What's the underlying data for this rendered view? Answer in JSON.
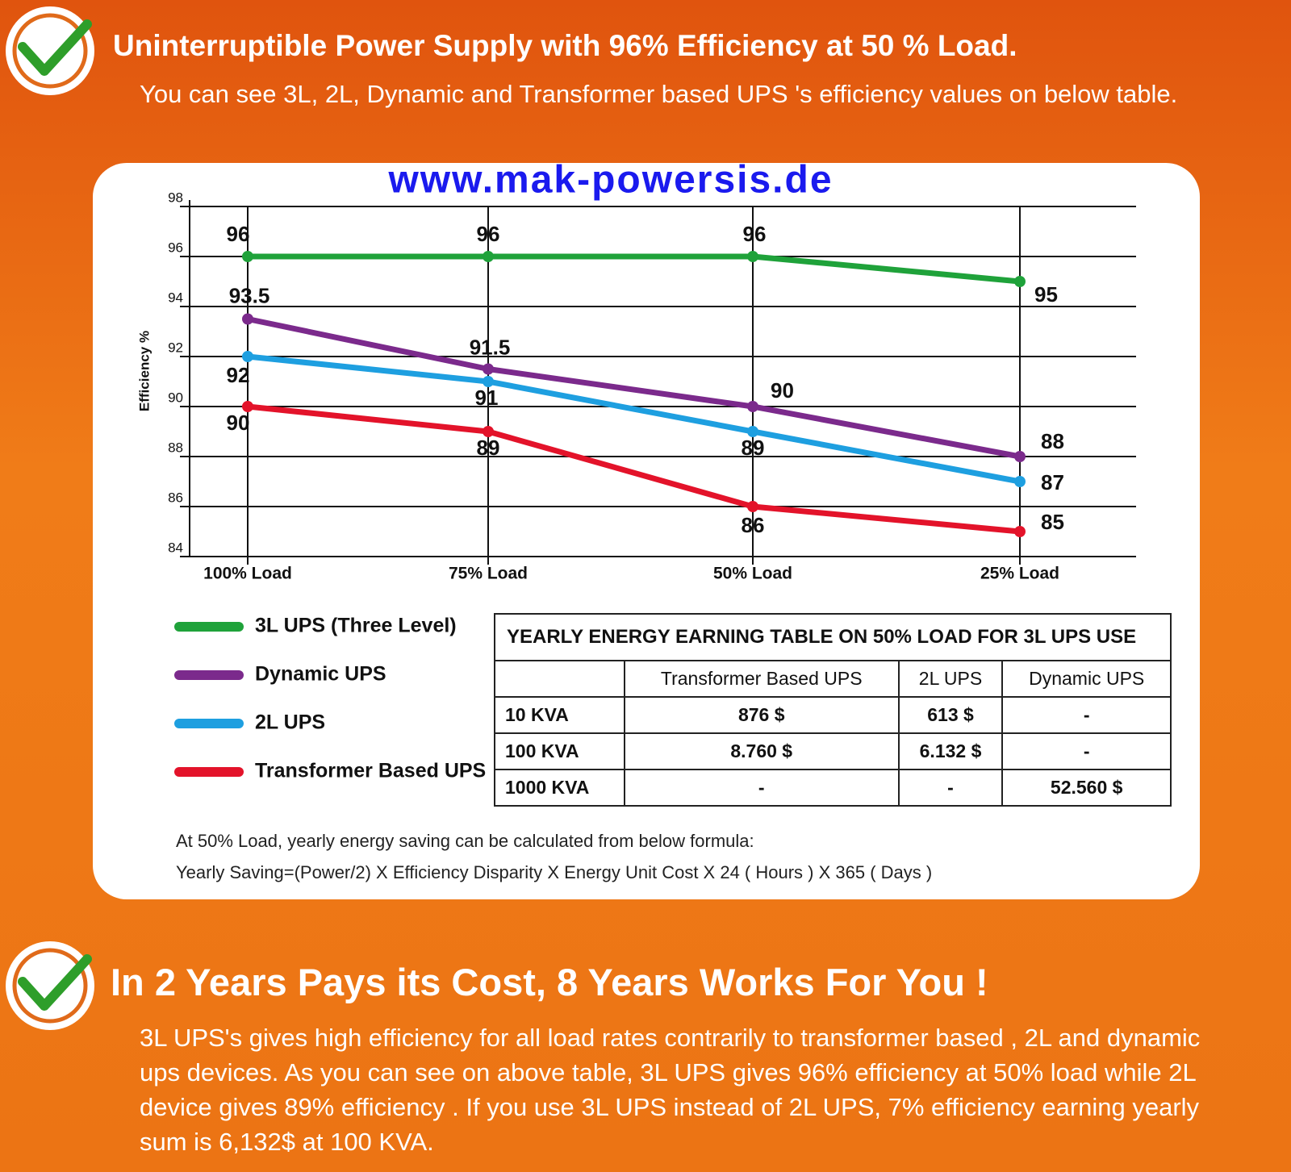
{
  "header": {
    "title": "Uninterruptible Power Supply with 96% Efficiency at  50 % Load.",
    "subtitle": "You can see 3L, 2L, Dynamic and Transformer  based UPS 's efficiency values on below table."
  },
  "chart_data": {
    "type": "line",
    "website": "www.mak-powersis.de",
    "y_label": "Efficiency %",
    "categories": [
      "100% Load",
      "75% Load",
      "50% Load",
      "25% Load"
    ],
    "series": [
      {
        "name": "3L UPS (Three Level)",
        "color": "#1fa23a",
        "values": [
          96,
          96,
          96,
          95
        ]
      },
      {
        "name": "Dynamic UPS",
        "color": "#7b2a8c",
        "values": [
          93.5,
          91.5,
          90,
          88
        ]
      },
      {
        "name": "2L UPS",
        "color": "#1e9fe0",
        "values": [
          92,
          91,
          89,
          87
        ]
      },
      {
        "name": "Transformer Based UPS",
        "color": "#e3132a",
        "values": [
          90,
          89,
          86,
          85
        ]
      }
    ],
    "ylim": [
      84,
      98
    ],
    "yticks": [
      84,
      86,
      88,
      90,
      92,
      94,
      96,
      98
    ],
    "grid": true
  },
  "table": {
    "title": "YEARLY ENERGY EARNING TABLE ON 50% LOAD FOR 3L UPS USE",
    "columns": [
      "Transformer Based UPS",
      "2L UPS",
      "Dynamic UPS"
    ],
    "rows": [
      [
        "10 KVA",
        "876 $",
        "613 $",
        "-"
      ],
      [
        "100  KVA",
        "8.760 $",
        "6.132 $",
        "-"
      ],
      [
        "1000  KVA",
        "-",
        "-",
        "52.560 $"
      ]
    ]
  },
  "notes": [
    "At 50% Load, yearly energy saving can be calculated from below formula:",
    "Yearly Saving=(Power/2) X Efficiency Disparity X Energy Unit Cost X 24 ( Hours ) X 365 ( Days )"
  ],
  "footer": {
    "title": "In 2 Years Pays its Cost, 8 Years Works For You !",
    "text": "3L UPS's gives high efficiency  for all load rates contrarily to transformer based , 2L and dynamic ups devices. As you can see on above table, 3L UPS gives 96% efficiency at 50% load while 2L device gives 89% efficiency . If you use 3L UPS instead of 2L UPS, 7% efficiency earning yearly sum is 6,132$ at 100 KVA."
  }
}
